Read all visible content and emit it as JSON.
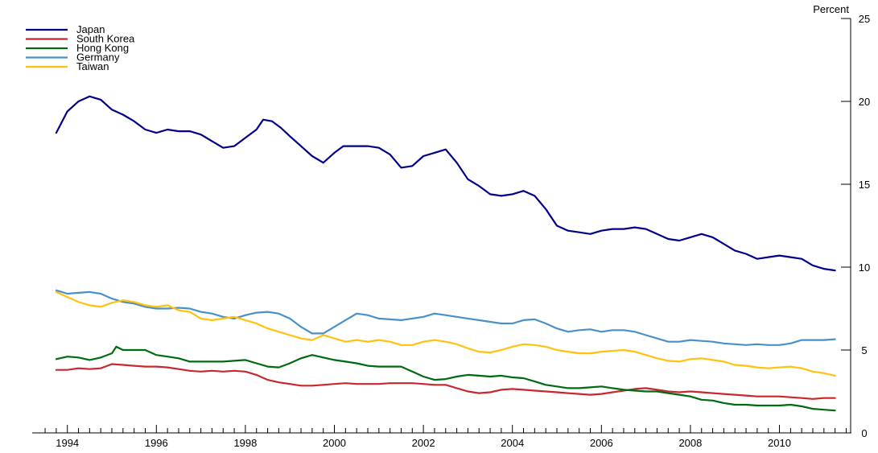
{
  "chart_data": {
    "type": "line",
    "title": "",
    "xlabel": "",
    "ylabel": "Percent",
    "xlim": [
      1993.3,
      2011.6
    ],
    "ylim": [
      0,
      25
    ],
    "x_ticks": [
      1994,
      1996,
      1998,
      2000,
      2002,
      2004,
      2006,
      2008,
      2010
    ],
    "x_tick_labels": [
      "1994",
      "1996",
      "1998",
      "2000",
      "2002",
      "2004",
      "2006",
      "2008",
      "2010"
    ],
    "y_ticks": [
      0,
      5,
      10,
      15,
      20,
      25
    ],
    "y_tick_labels": [
      "0",
      "5",
      "10",
      "15",
      "20",
      "25"
    ],
    "y_axis_side": "right",
    "legend_position": "top-left",
    "grid": false,
    "series": [
      {
        "name": "Japan",
        "color": "#00008B",
        "x": [
          1993.75,
          1994.0,
          1994.25,
          1994.5,
          1994.75,
          1995.0,
          1995.25,
          1995.5,
          1995.75,
          1996.0,
          1996.25,
          1996.5,
          1996.75,
          1997.0,
          1997.25,
          1997.5,
          1997.75,
          1998.0,
          1998.25,
          1998.4,
          1998.6,
          1998.8,
          1999.0,
          1999.25,
          1999.5,
          1999.75,
          2000.0,
          2000.2,
          2000.5,
          2000.75,
          2001.0,
          2001.25,
          2001.5,
          2001.75,
          2002.0,
          2002.25,
          2002.5,
          2002.75,
          2003.0,
          2003.25,
          2003.5,
          2003.75,
          2004.0,
          2004.25,
          2004.5,
          2004.75,
          2005.0,
          2005.25,
          2005.5,
          2005.75,
          2006.0,
          2006.25,
          2006.5,
          2006.75,
          2007.0,
          2007.25,
          2007.5,
          2007.75,
          2008.0,
          2008.25,
          2008.5,
          2008.75,
          2009.0,
          2009.25,
          2009.5,
          2009.75,
          2010.0,
          2010.25,
          2010.5,
          2010.75,
          2011.0,
          2011.25
        ],
        "values": [
          18.1,
          19.4,
          20.0,
          20.3,
          20.1,
          19.5,
          19.2,
          18.8,
          18.3,
          18.1,
          18.3,
          18.2,
          18.2,
          18.0,
          17.6,
          17.2,
          17.3,
          17.8,
          18.3,
          18.9,
          18.8,
          18.4,
          17.9,
          17.3,
          16.7,
          16.3,
          16.9,
          17.3,
          17.3,
          17.3,
          17.2,
          16.8,
          16.0,
          16.1,
          16.7,
          16.9,
          17.1,
          16.3,
          15.3,
          14.9,
          14.4,
          14.3,
          14.4,
          14.6,
          14.3,
          13.5,
          12.5,
          12.2,
          12.1,
          12.0,
          12.2,
          12.3,
          12.3,
          12.4,
          12.3,
          12.0,
          11.7,
          11.6,
          11.8,
          12.0,
          11.8,
          11.4,
          11.0,
          10.8,
          10.5,
          10.6,
          10.7,
          10.6,
          10.5,
          10.1,
          9.9,
          9.8
        ]
      },
      {
        "name": "South Korea",
        "color": "#C8282D",
        "x": [
          1993.75,
          1994.0,
          1994.25,
          1994.5,
          1994.75,
          1995.0,
          1995.25,
          1995.5,
          1995.75,
          1996.0,
          1996.25,
          1996.5,
          1996.75,
          1997.0,
          1997.25,
          1997.5,
          1997.75,
          1998.0,
          1998.25,
          1998.5,
          1998.75,
          1999.0,
          1999.25,
          1999.5,
          1999.75,
          2000.0,
          2000.25,
          2000.5,
          2000.75,
          2001.0,
          2001.25,
          2001.5,
          2001.75,
          2002.0,
          2002.25,
          2002.5,
          2002.75,
          2003.0,
          2003.25,
          2003.5,
          2003.75,
          2004.0,
          2004.25,
          2004.5,
          2004.75,
          2005.0,
          2005.25,
          2005.5,
          2005.75,
          2006.0,
          2006.25,
          2006.5,
          2006.75,
          2007.0,
          2007.25,
          2007.5,
          2007.75,
          2008.0,
          2008.25,
          2008.5,
          2008.75,
          2009.0,
          2009.25,
          2009.5,
          2009.75,
          2010.0,
          2010.25,
          2010.5,
          2010.75,
          2011.0,
          2011.25
        ],
        "values": [
          3.8,
          3.8,
          3.9,
          3.85,
          3.9,
          4.15,
          4.1,
          4.05,
          4.0,
          4.0,
          3.95,
          3.85,
          3.75,
          3.7,
          3.75,
          3.7,
          3.75,
          3.7,
          3.5,
          3.2,
          3.05,
          2.95,
          2.85,
          2.85,
          2.9,
          2.95,
          3.0,
          2.95,
          2.95,
          2.95,
          3.0,
          3.0,
          3.0,
          2.95,
          2.9,
          2.9,
          2.7,
          2.5,
          2.4,
          2.45,
          2.6,
          2.65,
          2.6,
          2.55,
          2.5,
          2.45,
          2.4,
          2.35,
          2.3,
          2.35,
          2.45,
          2.55,
          2.65,
          2.7,
          2.6,
          2.5,
          2.45,
          2.5,
          2.45,
          2.4,
          2.35,
          2.3,
          2.25,
          2.2,
          2.2,
          2.2,
          2.15,
          2.1,
          2.05,
          2.1,
          2.1
        ]
      },
      {
        "name": "Hong Kong",
        "color": "#006A11",
        "x": [
          1993.75,
          1994.0,
          1994.25,
          1994.5,
          1994.75,
          1995.0,
          1995.1,
          1995.25,
          1995.5,
          1995.75,
          1996.0,
          1996.25,
          1996.5,
          1996.75,
          1997.0,
          1997.25,
          1997.5,
          1997.75,
          1998.0,
          1998.25,
          1998.5,
          1998.75,
          1999.0,
          1999.25,
          1999.5,
          1999.75,
          2000.0,
          2000.25,
          2000.5,
          2000.75,
          2001.0,
          2001.25,
          2001.5,
          2001.75,
          2002.0,
          2002.25,
          2002.5,
          2002.75,
          2003.0,
          2003.25,
          2003.5,
          2003.75,
          2004.0,
          2004.25,
          2004.5,
          2004.75,
          2005.0,
          2005.25,
          2005.5,
          2005.75,
          2006.0,
          2006.25,
          2006.5,
          2006.75,
          2007.0,
          2007.25,
          2007.5,
          2007.75,
          2008.0,
          2008.25,
          2008.5,
          2008.75,
          2009.0,
          2009.25,
          2009.5,
          2009.75,
          2010.0,
          2010.25,
          2010.5,
          2010.75,
          2011.0,
          2011.25
        ],
        "values": [
          4.45,
          4.6,
          4.55,
          4.4,
          4.55,
          4.8,
          5.2,
          5.0,
          5.0,
          5.0,
          4.7,
          4.6,
          4.5,
          4.3,
          4.3,
          4.3,
          4.3,
          4.35,
          4.4,
          4.2,
          4.0,
          3.95,
          4.2,
          4.5,
          4.7,
          4.55,
          4.4,
          4.3,
          4.2,
          4.05,
          4.0,
          4.0,
          4.0,
          3.7,
          3.4,
          3.2,
          3.25,
          3.4,
          3.5,
          3.45,
          3.4,
          3.45,
          3.35,
          3.3,
          3.1,
          2.9,
          2.8,
          2.7,
          2.7,
          2.75,
          2.8,
          2.7,
          2.6,
          2.55,
          2.5,
          2.5,
          2.4,
          2.3,
          2.2,
          2.0,
          1.95,
          1.8,
          1.7,
          1.7,
          1.65,
          1.65,
          1.65,
          1.7,
          1.6,
          1.45,
          1.4,
          1.35
        ]
      },
      {
        "name": "Germany",
        "color": "#4A90C8",
        "x": [
          1993.75,
          1994.0,
          1994.25,
          1994.5,
          1994.75,
          1995.0,
          1995.25,
          1995.5,
          1995.75,
          1996.0,
          1996.25,
          1996.5,
          1996.75,
          1997.0,
          1997.25,
          1997.5,
          1997.75,
          1998.0,
          1998.25,
          1998.5,
          1998.75,
          1999.0,
          1999.25,
          1999.5,
          1999.75,
          2000.0,
          2000.25,
          2000.5,
          2000.75,
          2001.0,
          2001.25,
          2001.5,
          2001.75,
          2002.0,
          2002.25,
          2002.5,
          2002.75,
          2003.0,
          2003.25,
          2003.5,
          2003.75,
          2004.0,
          2004.25,
          2004.5,
          2004.75,
          2005.0,
          2005.25,
          2005.5,
          2005.75,
          2006.0,
          2006.25,
          2006.5,
          2006.75,
          2007.0,
          2007.25,
          2007.5,
          2007.75,
          2008.0,
          2008.25,
          2008.5,
          2008.75,
          2009.0,
          2009.25,
          2009.5,
          2009.75,
          2010.0,
          2010.25,
          2010.5,
          2010.75,
          2011.0,
          2011.25
        ],
        "values": [
          8.6,
          8.4,
          8.45,
          8.5,
          8.4,
          8.1,
          7.9,
          7.8,
          7.6,
          7.5,
          7.5,
          7.55,
          7.5,
          7.3,
          7.2,
          7.0,
          6.9,
          7.1,
          7.25,
          7.3,
          7.2,
          6.9,
          6.4,
          6.0,
          6.0,
          6.4,
          6.8,
          7.2,
          7.1,
          6.9,
          6.85,
          6.8,
          6.9,
          7.0,
          7.2,
          7.1,
          7.0,
          6.9,
          6.8,
          6.7,
          6.6,
          6.6,
          6.8,
          6.85,
          6.6,
          6.3,
          6.1,
          6.2,
          6.25,
          6.1,
          6.2,
          6.2,
          6.1,
          5.9,
          5.7,
          5.5,
          5.5,
          5.6,
          5.55,
          5.5,
          5.4,
          5.35,
          5.3,
          5.35,
          5.3,
          5.3,
          5.4,
          5.6,
          5.6,
          5.6,
          5.65
        ]
      },
      {
        "name": "Taiwan",
        "color": "#FFC20E",
        "x": [
          1993.75,
          1994.0,
          1994.25,
          1994.5,
          1994.75,
          1995.0,
          1995.25,
          1995.5,
          1995.75,
          1996.0,
          1996.25,
          1996.5,
          1996.75,
          1997.0,
          1997.25,
          1997.5,
          1997.75,
          1998.0,
          1998.25,
          1998.5,
          1998.75,
          1999.0,
          1999.25,
          1999.5,
          1999.75,
          2000.0,
          2000.25,
          2000.5,
          2000.75,
          2001.0,
          2001.25,
          2001.5,
          2001.75,
          2002.0,
          2002.25,
          2002.5,
          2002.75,
          2003.0,
          2003.25,
          2003.5,
          2003.75,
          2004.0,
          2004.25,
          2004.5,
          2004.75,
          2005.0,
          2005.25,
          2005.5,
          2005.75,
          2006.0,
          2006.25,
          2006.5,
          2006.75,
          2007.0,
          2007.25,
          2007.5,
          2007.75,
          2008.0,
          2008.25,
          2008.5,
          2008.75,
          2009.0,
          2009.25,
          2009.5,
          2009.75,
          2010.0,
          2010.25,
          2010.5,
          2010.75,
          2011.0,
          2011.25
        ],
        "values": [
          8.5,
          8.2,
          7.9,
          7.7,
          7.6,
          7.85,
          8.0,
          7.9,
          7.7,
          7.6,
          7.7,
          7.4,
          7.3,
          6.9,
          6.8,
          6.9,
          7.0,
          6.8,
          6.6,
          6.3,
          6.1,
          5.9,
          5.7,
          5.6,
          5.9,
          5.7,
          5.5,
          5.6,
          5.5,
          5.6,
          5.5,
          5.3,
          5.3,
          5.5,
          5.6,
          5.5,
          5.35,
          5.1,
          4.9,
          4.85,
          5.0,
          5.2,
          5.35,
          5.3,
          5.2,
          5.0,
          4.9,
          4.8,
          4.8,
          4.9,
          4.95,
          5.0,
          4.9,
          4.7,
          4.5,
          4.35,
          4.3,
          4.45,
          4.5,
          4.4,
          4.3,
          4.1,
          4.05,
          3.95,
          3.9,
          3.95,
          4.0,
          3.9,
          3.7,
          3.6,
          3.45
        ]
      }
    ]
  }
}
